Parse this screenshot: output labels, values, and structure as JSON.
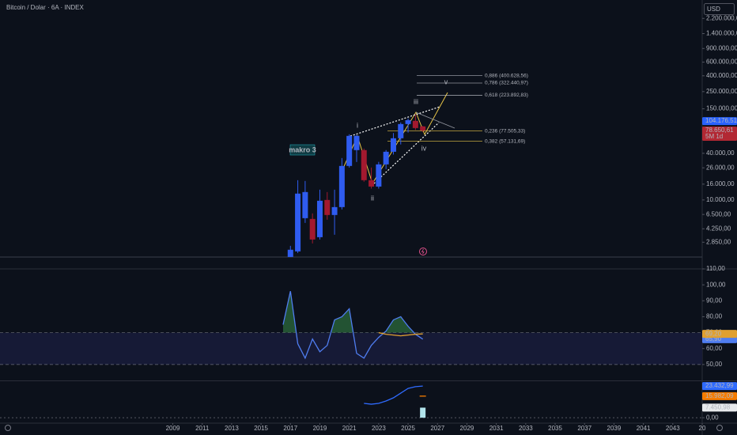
{
  "chart_data": [
    {
      "type": "candlestick",
      "title": "Bitcoin / Dolar · 6A · INDEX",
      "currency": "USD",
      "log_scale": true,
      "x": [
        2017,
        2017.5,
        2018,
        2018.5,
        2019,
        2019.5,
        2020,
        2020.5,
        2021,
        2021.5,
        2022,
        2022.5,
        2023,
        2023.5,
        2024,
        2024.5,
        2025,
        2025.5,
        2026
      ],
      "open": [
        1840,
        2170,
        5820,
        5690,
        3310,
        10000,
        6400,
        8090,
        27470,
        43970,
        43970,
        17990,
        14890,
        28780,
        41880,
        62530,
        95400,
        104800,
        88900
      ],
      "high": [
        2560,
        17990,
        17580,
        6710,
        13580,
        12650,
        13580,
        34750,
        70330,
        69000,
        46030,
        26200,
        31000,
        44000,
        73000,
        100000,
        112500,
        126500,
        90000
      ],
      "low": [
        1840,
        2070,
        5060,
        2750,
        3090,
        5560,
        3560,
        7550,
        26200,
        30900,
        17200,
        14000,
        14000,
        25000,
        38500,
        52000,
        74000,
        80000,
        75500
      ],
      "close": [
        2280,
        12080,
        12650,
        3090,
        9770,
        6400,
        8090,
        27470,
        67140,
        67140,
        17990,
        14890,
        28780,
        41880,
        62530,
        95400,
        107000,
        84800,
        78650.61
      ],
      "up_color": "#2f5cf0",
      "down_color": "#a3192f",
      "xlim": [
        1997.25,
        2045
      ],
      "xticks": [
        2009,
        2011,
        2013,
        2015,
        2017,
        2019,
        2021,
        2023,
        2025,
        2027,
        2029,
        2031,
        2033,
        2035,
        2037,
        2039,
        2041,
        2043,
        {
          "value": 2045,
          "label": "20"
        }
      ],
      "ylim": [
        1290,
        3800000
      ],
      "yticks": [
        {
          "value": 2850,
          "label": "2.850,00"
        },
        {
          "value": 4250,
          "label": "4.250,00"
        },
        {
          "value": 6500,
          "label": "6.500,00"
        },
        {
          "value": 10000,
          "label": "10.000,00"
        },
        {
          "value": 16000,
          "label": "16.000,00"
        },
        {
          "value": 26000,
          "label": "26.000,00"
        },
        {
          "value": 40000,
          "label": "40.000,00"
        },
        {
          "value": 150000,
          "label": "150.000,00"
        },
        {
          "value": 250000,
          "label": "250.000,00"
        },
        {
          "value": 400000,
          "label": "400.000,00"
        },
        {
          "value": 600000,
          "label": "600.000,00"
        },
        {
          "value": 900000,
          "label": "900.000,00"
        },
        {
          "value": 1400000,
          "label": "1.400.000,00"
        },
        {
          "value": 2200000,
          "label": "2.200.000,00"
        }
      ],
      "price_tags": [
        {
          "value": 104176.51,
          "label": "104.176,51",
          "color": "#2962ff"
        },
        {
          "value": 78650.61,
          "label": "78.650,61",
          "countdown": "5M 1d",
          "color": "#b22833"
        }
      ],
      "fib_levels": [
        {
          "value": 400628.56,
          "label": "0,886 (400.628,56)",
          "color": "#d1d4dc"
        },
        {
          "value": 322440.97,
          "label": "0,786 (322.440,97)",
          "color": "#d1d4dc"
        },
        {
          "value": 223892.83,
          "label": "0,618 (223.892,83)",
          "color": "#d1d4dc"
        },
        {
          "value": 77505.33,
          "label": "0,236 (77.505,33)",
          "color": "#e8c547"
        },
        {
          "value": 57131.69,
          "label": "0,382 (57.131,69)",
          "color": "#e8c547"
        }
      ],
      "annotations": [
        "makro 3"
      ],
      "wave_labels": [
        "i",
        "ii",
        "iii",
        "iv",
        "v"
      ]
    },
    {
      "type": "line",
      "x": [
        2016.5,
        2017,
        2017.5,
        2018,
        2018.5,
        2019,
        2019.5,
        2020,
        2020.5,
        2021,
        2021.5,
        2022,
        2022.5,
        2023,
        2023.5,
        2024,
        2024.5,
        2025,
        2025.5,
        2026
      ],
      "series": [
        {
          "color": "#4f7df0",
          "values": [
            75,
            96,
            63,
            54,
            66,
            58,
            62,
            78,
            80,
            85,
            57,
            54,
            62,
            67,
            71,
            78,
            80,
            74,
            69,
            65.9
          ],
          "tag_label": "65,90"
        },
        {
          "color": "#e0a030",
          "values": [
            null,
            null,
            null,
            null,
            null,
            null,
            null,
            null,
            null,
            null,
            null,
            null,
            null,
            70,
            69,
            68.5,
            68,
            68.5,
            69,
            69.2
          ],
          "tag_label": "69,20"
        }
      ],
      "levels": [
        70,
        50
      ],
      "ylim": [
        40,
        110
      ],
      "yticks": [
        {
          "value": 50,
          "label": "50,00"
        },
        {
          "value": 60,
          "label": "60,00"
        },
        {
          "value": 70,
          "label": "70,00"
        },
        {
          "value": 80,
          "label": "80,00"
        },
        {
          "value": 90,
          "label": "90,00"
        },
        {
          "value": 100,
          "label": "100,00"
        },
        {
          "value": 110,
          "label": "110,00"
        }
      ]
    },
    {
      "type": "line",
      "x": [
        2022,
        2022.5,
        2023,
        2023.5,
        2024,
        2024.5,
        2025,
        2025.5,
        2026
      ],
      "series": [
        {
          "color": "#2f6bff",
          "values": [
            10600,
            10000,
            10600,
            12400,
            14700,
            18200,
            21700,
            23000,
            23432.99
          ],
          "tag_label": "23.432,99"
        },
        {
          "color": "#f57c00",
          "values": [
            null,
            null,
            null,
            null,
            null,
            null,
            null,
            null,
            15982.09
          ],
          "tag_label": "15.982,09"
        }
      ],
      "bars": {
        "color": "#b2e4ec",
        "values": [
          null,
          null,
          null,
          null,
          null,
          null,
          null,
          null,
          7450.98
        ],
        "tag_label": "7.450,98"
      },
      "ylim": [
        -4000,
        27000
      ],
      "yticks": [
        {
          "value": 0,
          "label": "0,00"
        }
      ]
    }
  ]
}
